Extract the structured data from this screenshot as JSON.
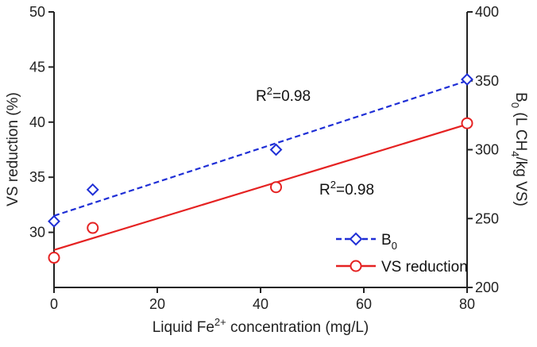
{
  "chart_data": {
    "type": "scatter",
    "title": "",
    "xlabel": {
      "text": "Liquid Fe",
      "sup": "2+",
      "rest": " concentration (mg/L)"
    },
    "ylabel_left": "VS reduction (%)",
    "ylabel_right": {
      "pre": "B",
      "sub0": "0",
      "mid": " (L CH",
      "sub4": "4",
      "post": "/kg VS)"
    },
    "xlim": [
      0,
      80
    ],
    "ylim_left": [
      25,
      50
    ],
    "ylim_right": [
      200,
      400
    ],
    "x_ticks": [
      0,
      20,
      40,
      60,
      80
    ],
    "y_left_ticks": [
      30,
      35,
      40,
      45,
      50
    ],
    "y_right_ticks": [
      200,
      250,
      300,
      350,
      400
    ],
    "grid": false,
    "series": [
      {
        "name": "B0",
        "axis": "right",
        "marker": "diamond",
        "color": "#1f2fd6",
        "line_style": "dashed",
        "x": [
          0,
          7.5,
          43,
          80
        ],
        "y": [
          248,
          271,
          300,
          351
        ],
        "fit": {
          "x0": 0,
          "y0": 252,
          "x1": 80,
          "y1": 350,
          "r2_label": "R²=0.98"
        }
      },
      {
        "name": "VS reduction",
        "axis": "left",
        "marker": "circle",
        "color": "#e52222",
        "line_style": "solid",
        "x": [
          0,
          7.5,
          43,
          80
        ],
        "y": [
          27.7,
          30.4,
          34.1,
          39.9
        ],
        "fit": {
          "x0": 0,
          "y0": 28.4,
          "x1": 80,
          "y1": 39.8,
          "r2_label": "R²=0.98"
        }
      }
    ],
    "annotations": [
      {
        "pre": "R",
        "sup": "2",
        "post": "=0.98",
        "series": "B0"
      },
      {
        "pre": "R",
        "sup": "2",
        "post": "=0.98",
        "series": "VS reduction"
      }
    ],
    "legend": {
      "placement": "bottom-right",
      "entries": [
        {
          "label": "B",
          "sub": "0",
          "series": "B0"
        },
        {
          "label": "VS reduction",
          "sub": "",
          "series": "VS reduction"
        }
      ]
    }
  }
}
